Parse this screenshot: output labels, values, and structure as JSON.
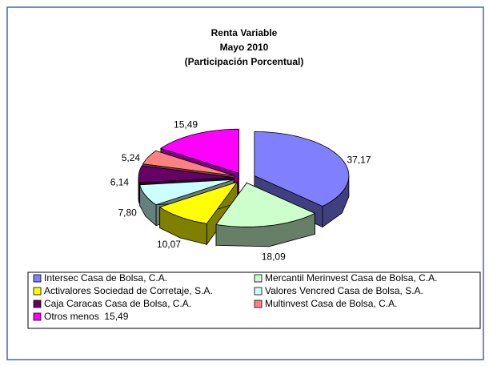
{
  "chart_data": {
    "type": "pie3d",
    "title": [
      "Renta Variable",
      "Mayo 2010",
      "(Participación Porcentual)"
    ],
    "categories": [
      "Intersec Casa de Bolsa, C.A.",
      "Mercantil Merinvest Casa de Bolsa, C.A.",
      "Activalores Sociedad de Corretaje, S.A.",
      "Valores Vencred Casa de Bolsa, S.A.",
      "Caja Caracas Casa de Bolsa, C.A.",
      "Multinvest Casa de Bolsa, C.A.",
      "Otros menos  15,49"
    ],
    "values": [
      37.17,
      18.09,
      10.07,
      7.8,
      6.14,
      5.24,
      15.49
    ],
    "value_labels": [
      "37,17",
      "18,09",
      "10,07",
      "7,80",
      "6,14",
      "5,24",
      "15,49"
    ],
    "colors": [
      "#8080ff",
      "#ccffcc",
      "#ffff00",
      "#ccffff",
      "#660066",
      "#ff8080",
      "#ff00ff"
    ],
    "legend": "bottom"
  }
}
